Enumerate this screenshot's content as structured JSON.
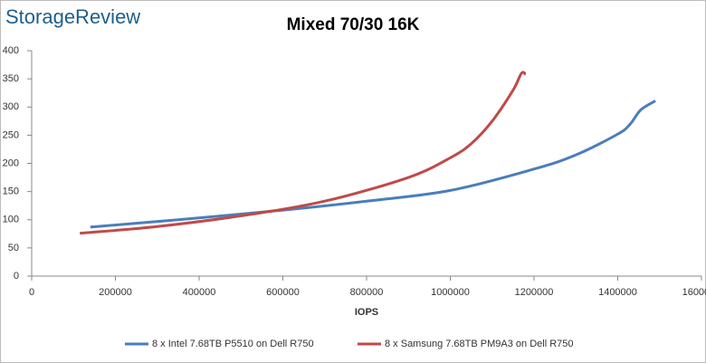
{
  "chart_data": {
    "type": "line",
    "watermark": "StorageReview",
    "title": "Mixed 70/30 16K",
    "x_label": "IOPS",
    "xlim": [
      0,
      1600000
    ],
    "xticks": [
      0,
      200000,
      400000,
      600000,
      800000,
      1000000,
      1200000,
      1400000,
      1600000
    ],
    "ylim": [
      0,
      400
    ],
    "yticks": [
      0,
      50,
      100,
      150,
      200,
      250,
      300,
      350,
      400
    ],
    "grid": false,
    "legend": "bottom",
    "series": [
      {
        "name": "8 x Intel 7.68TB P5510 on Dell R750",
        "color": "#4a7ebb",
        "x": [
          140000,
          350000,
          600000,
          800000,
          1000000,
          1200000,
          1300000,
          1400000,
          1430000,
          1455000,
          1490000
        ],
        "values": [
          87,
          100,
          117,
          133,
          152,
          190,
          215,
          252,
          270,
          295,
          311
        ]
      },
      {
        "name": "8 x Samsung 7.68TB PM9A3 on Dell R750",
        "color": "#be4b48",
        "x": [
          115000,
          300000,
          500000,
          700000,
          900000,
          1000000,
          1050000,
          1100000,
          1150000,
          1170000,
          1180000
        ],
        "values": [
          76,
          88,
          107,
          133,
          175,
          210,
          235,
          275,
          330,
          360,
          358
        ]
      }
    ]
  }
}
